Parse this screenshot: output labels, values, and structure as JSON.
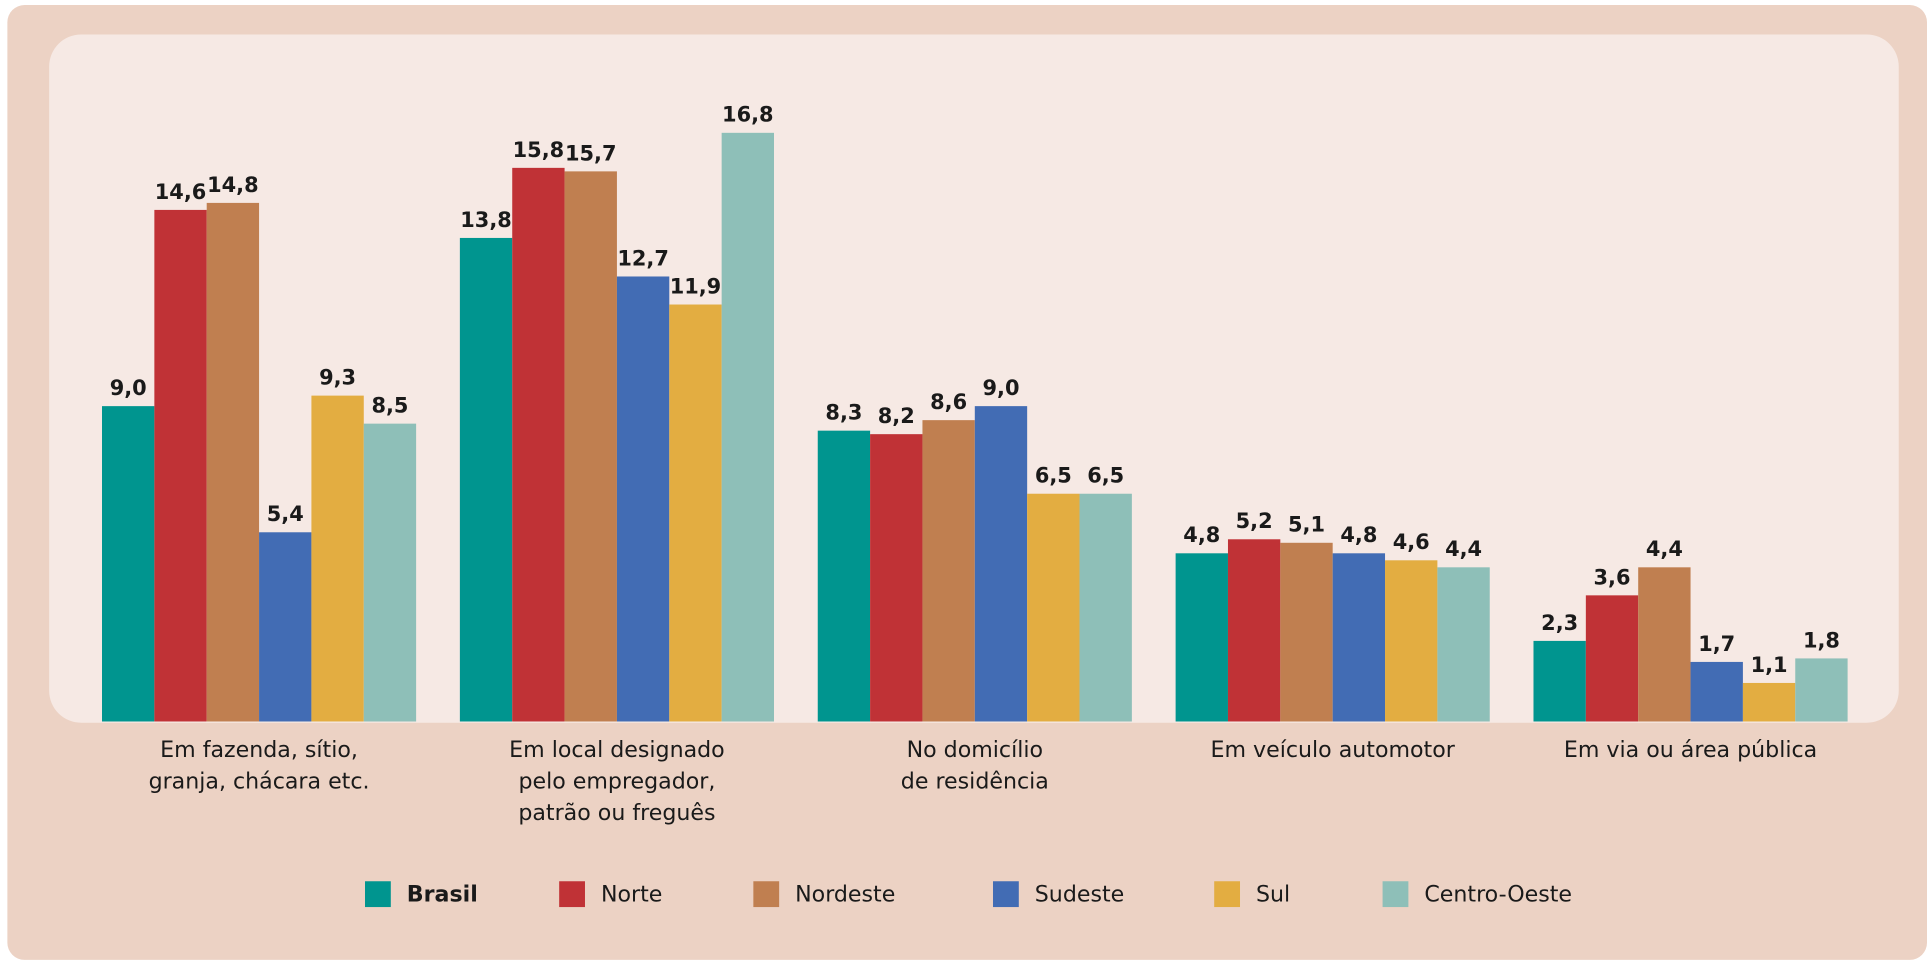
{
  "chart_data": {
    "type": "bar",
    "categories": [
      [
        "Em fazenda, sítio,",
        "granja, chácara etc."
      ],
      [
        "Em local designado",
        "pelo empregador,",
        "patrão ou freguês"
      ],
      [
        "No domicílio",
        "de residência"
      ],
      [
        "Em veículo automotor"
      ],
      [
        "Em via ou área pública"
      ]
    ],
    "series": [
      {
        "name": "Brasil",
        "color": "#00958f",
        "values": [
          9.0,
          13.8,
          8.3,
          4.8,
          2.3
        ],
        "value_labels": [
          "9,0",
          "13,8",
          "8,3",
          "4,8",
          "2,3"
        ]
      },
      {
        "name": "Norte",
        "color": "#c03236",
        "values": [
          14.6,
          15.8,
          8.2,
          5.2,
          3.6
        ],
        "value_labels": [
          "14,6",
          "15,8",
          "8,2",
          "5,2",
          "3,6"
        ]
      },
      {
        "name": "Nordeste",
        "color": "#c07f50",
        "values": [
          14.8,
          15.7,
          8.6,
          5.1,
          4.4
        ],
        "value_labels": [
          "14,8",
          "15,7",
          "8,6",
          "5,1",
          "4,4"
        ]
      },
      {
        "name": "Sudeste",
        "color": "#426cb4",
        "values": [
          5.4,
          12.7,
          9.0,
          4.8,
          1.7
        ],
        "value_labels": [
          "5,4",
          "12,7",
          "9,0",
          "4,8",
          "1,7"
        ]
      },
      {
        "name": "Sul",
        "color": "#e3ad41",
        "values": [
          9.3,
          11.9,
          6.5,
          4.6,
          1.1
        ],
        "value_labels": [
          "9,3",
          "11,9",
          "6,5",
          "4,6",
          "1,1"
        ]
      },
      {
        "name": "Centro-Oeste",
        "color": "#8ebfb8",
        "values": [
          8.5,
          16.8,
          6.5,
          4.4,
          1.8
        ],
        "value_labels": [
          "8,5",
          "16,8",
          "6,5",
          "4,4",
          "1,8"
        ]
      }
    ]
  }
}
